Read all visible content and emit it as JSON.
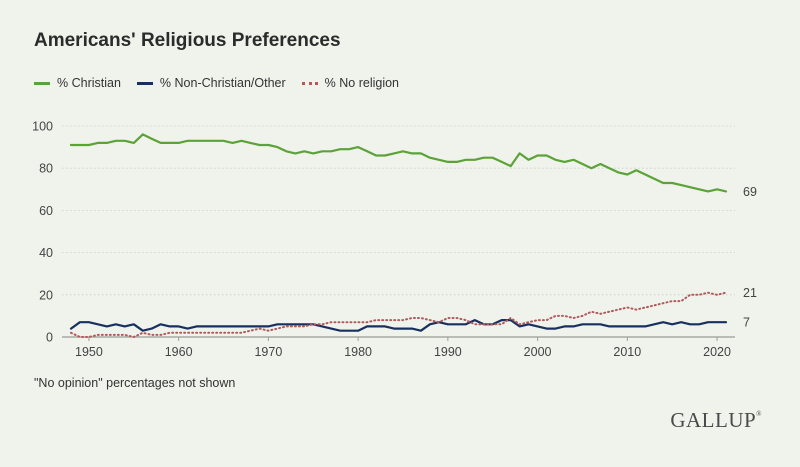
{
  "page": {
    "title": "Americans' Religious Preferences",
    "note": "\"No opinion\" percentages not shown",
    "brand": "GALLUP",
    "brand_mark": "®"
  },
  "colors": {
    "background": "#f0f2ec",
    "christian": "#5ba337",
    "non_christian": "#17305f",
    "no_religion": "#b05a5a",
    "grid": "#c9ccc5",
    "text": "#444444"
  },
  "chart_data": {
    "type": "line",
    "title": "Americans' Religious Preferences",
    "xlabel": "",
    "ylabel": "",
    "xlim": [
      1947,
      2022
    ],
    "ylim": [
      0,
      100
    ],
    "x_ticks": [
      1950,
      1960,
      1970,
      1980,
      1990,
      2000,
      2010,
      2020
    ],
    "y_ticks": [
      0,
      20,
      40,
      60,
      80,
      100
    ],
    "grid": "horizontal",
    "legend": "top-left",
    "series": [
      {
        "name": "% Christian",
        "style": "solid",
        "end_label": "69",
        "points": [
          [
            1948,
            91
          ],
          [
            1950,
            91
          ],
          [
            1951,
            92
          ],
          [
            1952,
            92
          ],
          [
            1953,
            93
          ],
          [
            1954,
            93
          ],
          [
            1955,
            92
          ],
          [
            1956,
            96
          ],
          [
            1957,
            94
          ],
          [
            1958,
            92
          ],
          [
            1959,
            92
          ],
          [
            1960,
            92
          ],
          [
            1961,
            93
          ],
          [
            1962,
            93
          ],
          [
            1963,
            93
          ],
          [
            1964,
            93
          ],
          [
            1965,
            93
          ],
          [
            1966,
            92
          ],
          [
            1967,
            93
          ],
          [
            1968,
            92
          ],
          [
            1969,
            91
          ],
          [
            1970,
            91
          ],
          [
            1971,
            90
          ],
          [
            1972,
            88
          ],
          [
            1973,
            87
          ],
          [
            1974,
            88
          ],
          [
            1975,
            87
          ],
          [
            1976,
            88
          ],
          [
            1977,
            88
          ],
          [
            1978,
            89
          ],
          [
            1979,
            89
          ],
          [
            1980,
            90
          ],
          [
            1981,
            88
          ],
          [
            1982,
            86
          ],
          [
            1983,
            86
          ],
          [
            1984,
            87
          ],
          [
            1985,
            88
          ],
          [
            1986,
            87
          ],
          [
            1987,
            87
          ],
          [
            1988,
            85
          ],
          [
            1989,
            84
          ],
          [
            1990,
            83
          ],
          [
            1991,
            83
          ],
          [
            1992,
            84
          ],
          [
            1993,
            84
          ],
          [
            1994,
            85
          ],
          [
            1995,
            85
          ],
          [
            1996,
            83
          ],
          [
            1997,
            81
          ],
          [
            1998,
            87
          ],
          [
            1999,
            84
          ],
          [
            2000,
            86
          ],
          [
            2001,
            86
          ],
          [
            2002,
            84
          ],
          [
            2003,
            83
          ],
          [
            2004,
            84
          ],
          [
            2005,
            82
          ],
          [
            2006,
            80
          ],
          [
            2007,
            82
          ],
          [
            2008,
            80
          ],
          [
            2009,
            78
          ],
          [
            2010,
            77
          ],
          [
            2011,
            79
          ],
          [
            2012,
            77
          ],
          [
            2013,
            75
          ],
          [
            2014,
            73
          ],
          [
            2015,
            73
          ],
          [
            2016,
            72
          ],
          [
            2017,
            71
          ],
          [
            2018,
            70
          ],
          [
            2019,
            69
          ],
          [
            2020,
            70
          ],
          [
            2021,
            69
          ]
        ]
      },
      {
        "name": "% Non-Christian/Other",
        "style": "solid",
        "end_label": "7",
        "points": [
          [
            1948,
            4
          ],
          [
            1949,
            7
          ],
          [
            1950,
            7
          ],
          [
            1951,
            6
          ],
          [
            1952,
            5
          ],
          [
            1953,
            6
          ],
          [
            1954,
            5
          ],
          [
            1955,
            6
          ],
          [
            1956,
            3
          ],
          [
            1957,
            4
          ],
          [
            1958,
            6
          ],
          [
            1959,
            5
          ],
          [
            1960,
            5
          ],
          [
            1961,
            4
          ],
          [
            1962,
            5
          ],
          [
            1963,
            5
          ],
          [
            1964,
            5
          ],
          [
            1965,
            5
          ],
          [
            1966,
            5
          ],
          [
            1967,
            5
          ],
          [
            1968,
            5
          ],
          [
            1969,
            5
          ],
          [
            1970,
            5
          ],
          [
            1971,
            6
          ],
          [
            1972,
            6
          ],
          [
            1973,
            6
          ],
          [
            1974,
            6
          ],
          [
            1975,
            6
          ],
          [
            1976,
            5
          ],
          [
            1977,
            4
          ],
          [
            1978,
            3
          ],
          [
            1979,
            3
          ],
          [
            1980,
            3
          ],
          [
            1981,
            5
          ],
          [
            1982,
            5
          ],
          [
            1983,
            5
          ],
          [
            1984,
            4
          ],
          [
            1985,
            4
          ],
          [
            1986,
            4
          ],
          [
            1987,
            3
          ],
          [
            1988,
            6
          ],
          [
            1989,
            7
          ],
          [
            1990,
            6
          ],
          [
            1991,
            6
          ],
          [
            1992,
            6
          ],
          [
            1993,
            8
          ],
          [
            1994,
            6
          ],
          [
            1995,
            6
          ],
          [
            1996,
            8
          ],
          [
            1997,
            8
          ],
          [
            1998,
            5
          ],
          [
            1999,
            6
          ],
          [
            2000,
            5
          ],
          [
            2001,
            4
          ],
          [
            2002,
            4
          ],
          [
            2003,
            5
          ],
          [
            2004,
            5
          ],
          [
            2005,
            6
          ],
          [
            2006,
            6
          ],
          [
            2007,
            6
          ],
          [
            2008,
            5
          ],
          [
            2009,
            5
          ],
          [
            2010,
            5
          ],
          [
            2011,
            5
          ],
          [
            2012,
            5
          ],
          [
            2013,
            6
          ],
          [
            2014,
            7
          ],
          [
            2015,
            6
          ],
          [
            2016,
            7
          ],
          [
            2017,
            6
          ],
          [
            2018,
            6
          ],
          [
            2019,
            7
          ],
          [
            2020,
            7
          ],
          [
            2021,
            7
          ]
        ]
      },
      {
        "name": "% No religion",
        "style": "dotted",
        "end_label": "21",
        "points": [
          [
            1948,
            2
          ],
          [
            1949,
            0
          ],
          [
            1950,
            0
          ],
          [
            1951,
            1
          ],
          [
            1952,
            1
          ],
          [
            1953,
            1
          ],
          [
            1954,
            1
          ],
          [
            1955,
            0
          ],
          [
            1956,
            2
          ],
          [
            1957,
            1
          ],
          [
            1958,
            1
          ],
          [
            1959,
            2
          ],
          [
            1960,
            2
          ],
          [
            1961,
            2
          ],
          [
            1962,
            2
          ],
          [
            1963,
            2
          ],
          [
            1964,
            2
          ],
          [
            1965,
            2
          ],
          [
            1966,
            2
          ],
          [
            1967,
            2
          ],
          [
            1968,
            3
          ],
          [
            1969,
            4
          ],
          [
            1970,
            3
          ],
          [
            1971,
            4
          ],
          [
            1972,
            5
          ],
          [
            1973,
            5
          ],
          [
            1974,
            5
          ],
          [
            1975,
            6
          ],
          [
            1976,
            6
          ],
          [
            1977,
            7
          ],
          [
            1978,
            7
          ],
          [
            1979,
            7
          ],
          [
            1980,
            7
          ],
          [
            1981,
            7
          ],
          [
            1982,
            8
          ],
          [
            1983,
            8
          ],
          [
            1984,
            8
          ],
          [
            1985,
            8
          ],
          [
            1986,
            9
          ],
          [
            1987,
            9
          ],
          [
            1988,
            8
          ],
          [
            1989,
            7
          ],
          [
            1990,
            9
          ],
          [
            1991,
            9
          ],
          [
            1992,
            8
          ],
          [
            1993,
            6
          ],
          [
            1994,
            6
          ],
          [
            1995,
            6
          ],
          [
            1996,
            6
          ],
          [
            1997,
            9
          ],
          [
            1998,
            6
          ],
          [
            1999,
            7
          ],
          [
            2000,
            8
          ],
          [
            2001,
            8
          ],
          [
            2002,
            10
          ],
          [
            2003,
            10
          ],
          [
            2004,
            9
          ],
          [
            2005,
            10
          ],
          [
            2006,
            12
          ],
          [
            2007,
            11
          ],
          [
            2008,
            12
          ],
          [
            2009,
            13
          ],
          [
            2010,
            14
          ],
          [
            2011,
            13
          ],
          [
            2012,
            14
          ],
          [
            2013,
            15
          ],
          [
            2014,
            16
          ],
          [
            2015,
            17
          ],
          [
            2016,
            17
          ],
          [
            2017,
            20
          ],
          [
            2018,
            20
          ],
          [
            2019,
            21
          ],
          [
            2020,
            20
          ],
          [
            2021,
            21
          ]
        ]
      }
    ]
  }
}
